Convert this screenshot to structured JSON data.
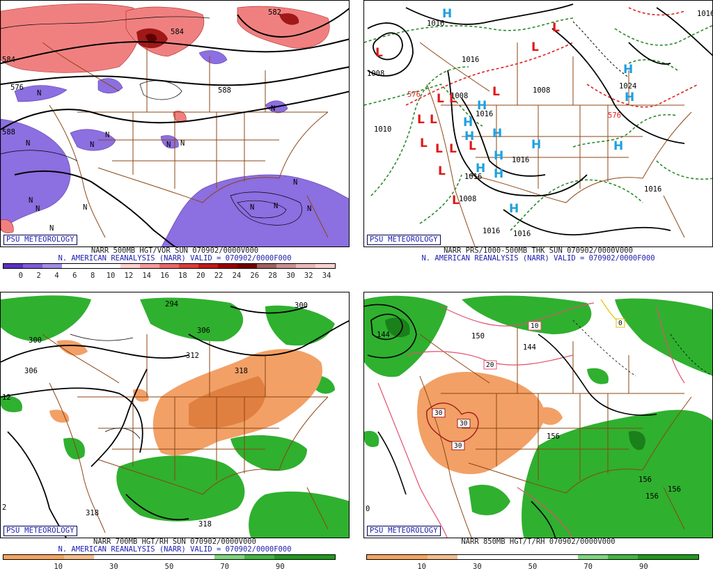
{
  "panels": [
    {
      "id": "tl",
      "badge": "PSU METEOROLOGY",
      "caption1": "NARR 500MB HGT/VOR SUN 070902/0000V000",
      "caption2": "N. AMERICAN REANALYSIS (NARR) VALID = 070902/0000F000",
      "colorbar": [
        "#5a2fc0",
        "#7e5ad6",
        "#a18ce6",
        "#ffffff",
        "#ffffff",
        "#ffffff",
        "#ffd0d0",
        "#f49a9a",
        "#e86868",
        "#d83c3c",
        "#c01818",
        "#960000",
        "#700000",
        "#a06060",
        "#c89090",
        "#e8b8b8",
        "#f8d0d0"
      ],
      "ticks": [
        "0",
        "2",
        "4",
        "6",
        "8",
        "10",
        "12",
        "14",
        "16",
        "18",
        "20",
        "22",
        "24",
        "26",
        "28",
        "30",
        "32",
        "34"
      ],
      "labels": [
        "582",
        "584",
        "576",
        "584",
        "588",
        "588",
        "N",
        "N",
        "N",
        "N",
        "N",
        "N",
        "N",
        "N",
        "N",
        "N",
        "N",
        "N",
        "N",
        "N",
        "N"
      ]
    },
    {
      "id": "tr",
      "badge": "PSU METEOROLOGY",
      "caption1": "NARR PRS/1000-500MB THK SUN 070902/0000V000",
      "caption2": "N. AMERICAN REANALYSIS (NARR) VALID = 070902/0000F000",
      "labels": [
        "1016",
        "1008",
        "1016",
        "1008",
        "1010",
        "1008",
        "1016",
        "1024",
        "1016",
        "1016",
        "1016",
        "1016",
        "1016",
        "1008",
        "576",
        "576",
        "1016"
      ],
      "highs": [
        "H",
        "H",
        "H",
        "H",
        "H",
        "H",
        "H",
        "H",
        "H",
        "H",
        "H",
        "H",
        "H"
      ],
      "lows": [
        "L",
        "L",
        "L",
        "L",
        "L",
        "L",
        "L",
        "L",
        "L",
        "L",
        "L",
        "L",
        "L",
        "L"
      ]
    },
    {
      "id": "bl",
      "badge": "PSU METEOROLOGY",
      "caption1": "NARR 700MB HGT/RH SUN 070902/0000V000",
      "caption2": "N. AMERICAN REANALYSIS (NARR) VALID = 070902/0000F000",
      "colorbar": [
        "#f4a460",
        "#f4a460",
        "#f6bd8a",
        "#ffffff",
        "#ffffff",
        "#ffffff",
        "#ffffff",
        "#7ed67e",
        "#3fb83f",
        "#1e9a1e",
        "#1e9a1e"
      ],
      "ticks": [
        "10",
        "30",
        "50",
        "70",
        "90"
      ],
      "labels": [
        "294",
        "300",
        "300",
        "306",
        "306",
        "312",
        "318",
        "318",
        "318",
        "12",
        "2"
      ]
    },
    {
      "id": "br",
      "badge": "PSU METEOROLOGY",
      "caption1": "NARR 850MB HGT/T/RH 070902/0000V000",
      "caption2": "",
      "colorbar": [
        "#f4a460",
        "#f4a460",
        "#f6bd8a",
        "#ffffff",
        "#ffffff",
        "#ffffff",
        "#ffffff",
        "#7ed67e",
        "#3fb83f",
        "#1e9a1e",
        "#1e9a1e"
      ],
      "ticks": [
        "10",
        "30",
        "50",
        "70",
        "90"
      ],
      "labels": [
        "144",
        "150",
        "144",
        "156",
        "156",
        "156",
        "156",
        "0"
      ],
      "templabels": [
        "10",
        "20",
        "30",
        "30",
        "30",
        "0"
      ]
    }
  ]
}
